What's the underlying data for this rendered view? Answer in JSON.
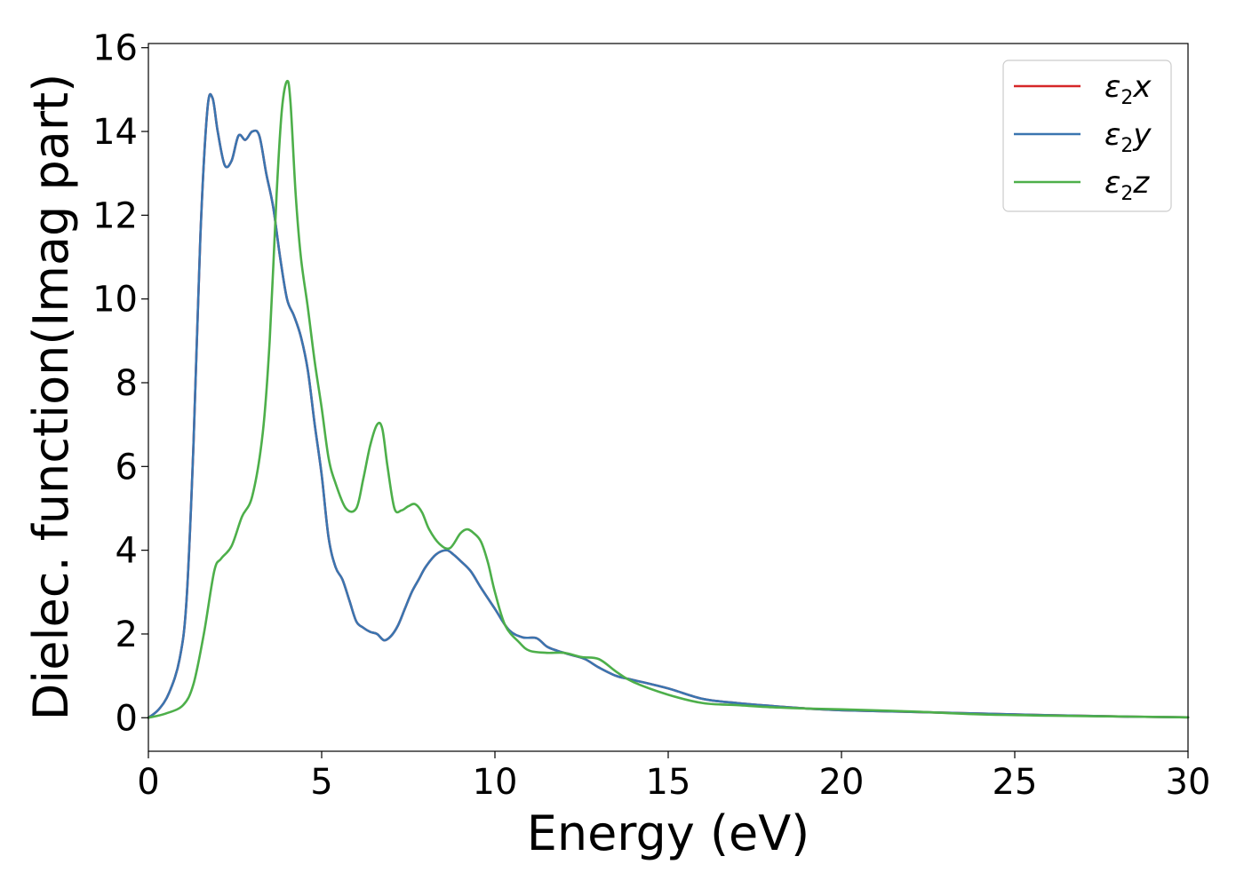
{
  "chart_data": {
    "type": "line",
    "title": "",
    "xlabel": "Energy (eV)",
    "ylabel": "Dielec. function(Imag part)",
    "xlim": [
      0,
      30
    ],
    "ylim": [
      -0.8,
      16.1
    ],
    "xticks": [
      0,
      5,
      10,
      15,
      20,
      25,
      30
    ],
    "yticks": [
      0,
      2,
      4,
      6,
      8,
      10,
      12,
      14,
      16
    ],
    "grid": false,
    "legend_position": "top-right",
    "series": [
      {
        "name": "ε2x",
        "legend_symbol": "ε",
        "legend_sub": "2",
        "legend_var": "x",
        "color": "#d62728",
        "x": [
          0,
          0.3,
          0.6,
          0.9,
          1.1,
          1.3,
          1.5,
          1.7,
          1.85,
          2.0,
          2.2,
          2.4,
          2.6,
          2.8,
          3.0,
          3.2,
          3.4,
          3.6,
          3.8,
          4.0,
          4.2,
          4.4,
          4.6,
          4.8,
          5.0,
          5.2,
          5.4,
          5.6,
          5.8,
          6.0,
          6.2,
          6.4,
          6.6,
          6.8,
          7.0,
          7.2,
          7.4,
          7.6,
          7.8,
          8.0,
          8.3,
          8.6,
          8.8,
          9.0,
          9.3,
          9.6,
          10.0,
          10.4,
          10.8,
          11.2,
          11.5,
          11.8,
          12.2,
          12.6,
          13.0,
          13.5,
          14.0,
          15.0,
          16.0,
          17.0,
          18.0,
          19.0,
          20.0,
          22.0,
          24.0,
          26.0,
          28.0,
          30.0
        ],
        "values": [
          0,
          0.2,
          0.6,
          1.4,
          2.8,
          6.5,
          11.5,
          14.5,
          14.8,
          14.0,
          13.2,
          13.3,
          13.9,
          13.8,
          14.0,
          13.9,
          13.0,
          12.2,
          11.0,
          10.0,
          9.6,
          9.1,
          8.3,
          7.0,
          5.8,
          4.3,
          3.6,
          3.3,
          2.8,
          2.3,
          2.15,
          2.05,
          2.0,
          1.85,
          1.95,
          2.2,
          2.6,
          3.0,
          3.3,
          3.6,
          3.9,
          4.0,
          3.9,
          3.75,
          3.5,
          3.1,
          2.6,
          2.1,
          1.92,
          1.9,
          1.7,
          1.6,
          1.5,
          1.4,
          1.2,
          1.0,
          0.9,
          0.7,
          0.45,
          0.35,
          0.28,
          0.22,
          0.18,
          0.14,
          0.1,
          0.06,
          0.03,
          0.01
        ]
      },
      {
        "name": "ε2y",
        "legend_symbol": "ε",
        "legend_sub": "2",
        "legend_var": "y",
        "color": "#3a75b0",
        "x": [
          0,
          0.3,
          0.6,
          0.9,
          1.1,
          1.3,
          1.5,
          1.7,
          1.85,
          2.0,
          2.2,
          2.4,
          2.6,
          2.8,
          3.0,
          3.2,
          3.4,
          3.6,
          3.8,
          4.0,
          4.2,
          4.4,
          4.6,
          4.8,
          5.0,
          5.2,
          5.4,
          5.6,
          5.8,
          6.0,
          6.2,
          6.4,
          6.6,
          6.8,
          7.0,
          7.2,
          7.4,
          7.6,
          7.8,
          8.0,
          8.3,
          8.6,
          8.8,
          9.0,
          9.3,
          9.6,
          10.0,
          10.4,
          10.8,
          11.2,
          11.5,
          11.8,
          12.2,
          12.6,
          13.0,
          13.5,
          14.0,
          15.0,
          16.0,
          17.0,
          18.0,
          19.0,
          20.0,
          22.0,
          24.0,
          26.0,
          28.0,
          30.0
        ],
        "values": [
          0,
          0.2,
          0.6,
          1.4,
          2.8,
          6.5,
          11.5,
          14.5,
          14.8,
          14.0,
          13.2,
          13.3,
          13.9,
          13.8,
          14.0,
          13.9,
          13.0,
          12.2,
          11.0,
          10.0,
          9.6,
          9.1,
          8.3,
          7.0,
          5.8,
          4.3,
          3.6,
          3.3,
          2.8,
          2.3,
          2.15,
          2.05,
          2.0,
          1.85,
          1.95,
          2.2,
          2.6,
          3.0,
          3.3,
          3.6,
          3.9,
          4.0,
          3.9,
          3.75,
          3.5,
          3.1,
          2.6,
          2.1,
          1.92,
          1.9,
          1.7,
          1.6,
          1.5,
          1.4,
          1.2,
          1.0,
          0.9,
          0.7,
          0.45,
          0.35,
          0.28,
          0.22,
          0.18,
          0.14,
          0.1,
          0.06,
          0.03,
          0.01
        ]
      },
      {
        "name": "ε2z",
        "legend_symbol": "ε",
        "legend_sub": "2",
        "legend_var": "z",
        "color": "#4daf4a",
        "x": [
          0,
          0.5,
          1.0,
          1.3,
          1.6,
          1.9,
          2.1,
          2.4,
          2.7,
          3.0,
          3.3,
          3.5,
          3.7,
          3.85,
          4.0,
          4.1,
          4.25,
          4.4,
          4.6,
          4.8,
          5.0,
          5.2,
          5.4,
          5.7,
          6.0,
          6.2,
          6.4,
          6.6,
          6.75,
          6.9,
          7.1,
          7.3,
          7.5,
          7.7,
          7.9,
          8.1,
          8.4,
          8.7,
          9.0,
          9.2,
          9.4,
          9.6,
          9.8,
          10.0,
          10.3,
          10.7,
          11.0,
          11.5,
          12.0,
          12.5,
          13.0,
          13.5,
          14.0,
          15.0,
          16.0,
          17.0,
          18.0,
          19.0,
          20.0,
          22.0,
          24.0,
          26.0,
          28.0,
          30.0
        ],
        "values": [
          0,
          0.1,
          0.3,
          0.8,
          2.0,
          3.5,
          3.8,
          4.1,
          4.8,
          5.3,
          6.8,
          9.0,
          12.5,
          14.5,
          15.2,
          14.7,
          12.5,
          11.0,
          9.8,
          8.5,
          7.4,
          6.2,
          5.6,
          5.0,
          5.0,
          5.7,
          6.5,
          7.0,
          6.9,
          6.0,
          5.0,
          4.95,
          5.05,
          5.1,
          4.9,
          4.5,
          4.15,
          4.05,
          4.4,
          4.5,
          4.4,
          4.2,
          3.7,
          3.0,
          2.2,
          1.8,
          1.6,
          1.55,
          1.55,
          1.45,
          1.4,
          1.1,
          0.85,
          0.55,
          0.35,
          0.3,
          0.25,
          0.22,
          0.2,
          0.15,
          0.08,
          0.05,
          0.03,
          0.01
        ]
      }
    ]
  }
}
